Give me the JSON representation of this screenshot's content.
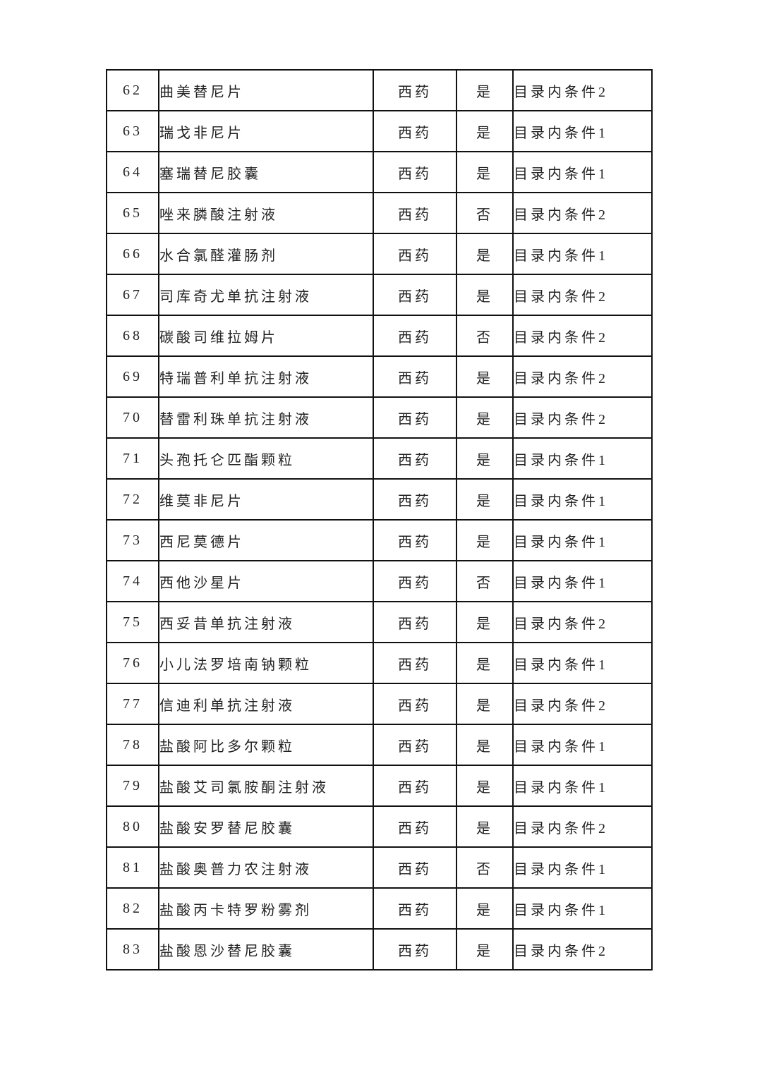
{
  "table": {
    "rows": [
      {
        "no": "62",
        "name": "曲美替尼片",
        "type": "西药",
        "flag": "是",
        "condition": "目录内条件2"
      },
      {
        "no": "63",
        "name": "瑞戈非尼片",
        "type": "西药",
        "flag": "是",
        "condition": "目录内条件1"
      },
      {
        "no": "64",
        "name": "塞瑞替尼胶囊",
        "type": "西药",
        "flag": "是",
        "condition": "目录内条件1"
      },
      {
        "no": "65",
        "name": "唑来膦酸注射液",
        "type": "西药",
        "flag": "否",
        "condition": "目录内条件2"
      },
      {
        "no": "66",
        "name": "水合氯醛灌肠剂",
        "type": "西药",
        "flag": "是",
        "condition": "目录内条件1"
      },
      {
        "no": "67",
        "name": "司库奇尤单抗注射液",
        "type": "西药",
        "flag": "是",
        "condition": "目录内条件2"
      },
      {
        "no": "68",
        "name": "碳酸司维拉姆片",
        "type": "西药",
        "flag": "否",
        "condition": "目录内条件2"
      },
      {
        "no": "69",
        "name": "特瑞普利单抗注射液",
        "type": "西药",
        "flag": "是",
        "condition": "目录内条件2"
      },
      {
        "no": "70",
        "name": "替雷利珠单抗注射液",
        "type": "西药",
        "flag": "是",
        "condition": "目录内条件2"
      },
      {
        "no": "71",
        "name": "头孢托仑匹酯颗粒",
        "type": "西药",
        "flag": "是",
        "condition": "目录内条件1"
      },
      {
        "no": "72",
        "name": "维莫非尼片",
        "type": "西药",
        "flag": "是",
        "condition": "目录内条件1"
      },
      {
        "no": "73",
        "name": "西尼莫德片",
        "type": "西药",
        "flag": "是",
        "condition": "目录内条件1"
      },
      {
        "no": "74",
        "name": "西他沙星片",
        "type": "西药",
        "flag": "否",
        "condition": "目录内条件1"
      },
      {
        "no": "75",
        "name": "西妥昔单抗注射液",
        "type": "西药",
        "flag": "是",
        "condition": "目录内条件2"
      },
      {
        "no": "76",
        "name": "小儿法罗培南钠颗粒",
        "type": "西药",
        "flag": "是",
        "condition": "目录内条件1"
      },
      {
        "no": "77",
        "name": "信迪利单抗注射液",
        "type": "西药",
        "flag": "是",
        "condition": "目录内条件2"
      },
      {
        "no": "78",
        "name": "盐酸阿比多尔颗粒",
        "type": "西药",
        "flag": "是",
        "condition": "目录内条件1"
      },
      {
        "no": "79",
        "name": "盐酸艾司氯胺酮注射液",
        "type": "西药",
        "flag": "是",
        "condition": "目录内条件1"
      },
      {
        "no": "80",
        "name": "盐酸安罗替尼胶囊",
        "type": "西药",
        "flag": "是",
        "condition": "目录内条件2"
      },
      {
        "no": "81",
        "name": "盐酸奥普力农注射液",
        "type": "西药",
        "flag": "否",
        "condition": "目录内条件1"
      },
      {
        "no": "82",
        "name": "盐酸丙卡特罗粉雾剂",
        "type": "西药",
        "flag": "是",
        "condition": "目录内条件1"
      },
      {
        "no": "83",
        "name": "盐酸恩沙替尼胶囊",
        "type": "西药",
        "flag": "是",
        "condition": "目录内条件2"
      }
    ]
  }
}
